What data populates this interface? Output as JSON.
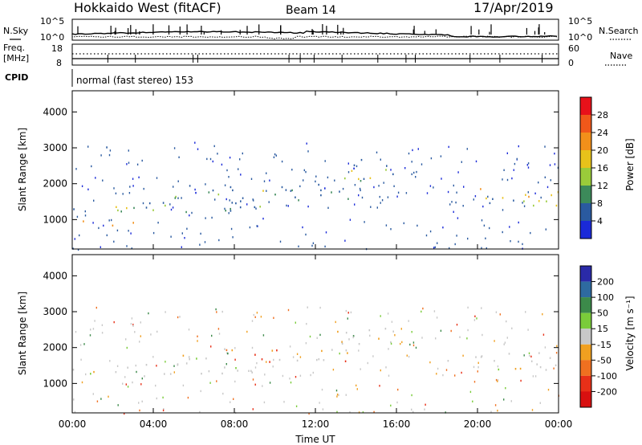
{
  "header": {
    "title": "Hokkaido West (fitACF)",
    "beam": "Beam 14",
    "date": "17/Apr/2019"
  },
  "noise_panel": {
    "left_label": "N.Sky",
    "right_label": "N.Search",
    "tick_top": "10^5",
    "tick_bottom": "10^0"
  },
  "freq_panel": {
    "left_label_line1": "Freq.",
    "left_label_line2": "[MHz]",
    "right_label": "Nave",
    "left_tick_top": "18",
    "left_tick_bottom": "8",
    "right_tick_top": "60",
    "right_tick_bottom": "0"
  },
  "cpid": {
    "label": "CPID",
    "value": "normal (fast stereo) 153"
  },
  "power_panel": {
    "ylabel": "Slant Range [km]",
    "colorbar_label": "Power [dB]",
    "colorbar_ticks": [
      "28",
      "24",
      "20",
      "16",
      "12",
      "8",
      "4"
    ],
    "colorbar_colors": [
      "#e8111a",
      "#f0581a",
      "#f2901a",
      "#e8c21a",
      "#9acb3a",
      "#3c8a5a",
      "#2a5aa0",
      "#1a2ad8"
    ]
  },
  "velocity_panel": {
    "ylabel": "Slant Range [km]",
    "colorbar_label": "Velocity [m s⁻¹]",
    "colorbar_ticks": [
      "200",
      "100",
      "50",
      "15",
      "-15",
      "-50",
      "-100",
      "-200"
    ],
    "colorbar_colors": [
      "#2a2aa8",
      "#2e6aa0",
      "#3c8a4a",
      "#7acc3a",
      "#c8c8c8",
      "#f0a020",
      "#f07020",
      "#e83018",
      "#d81010"
    ]
  },
  "xaxis": {
    "label": "Time UT",
    "ticks": [
      "00:00",
      "04:00",
      "08:00",
      "12:00",
      "16:00",
      "20:00",
      "00:00"
    ]
  },
  "chart_data": [
    {
      "type": "heatmap",
      "title": "Hokkaido West (fitACF)",
      "xlabel": "Time UT",
      "ylabel": "Slant Range [km]",
      "xlim": [
        0,
        24
      ],
      "ylim": [
        180,
        4590
      ],
      "yticks": [
        1000,
        2000,
        3000,
        4000
      ],
      "colorbar": {
        "label": "Power [dB]",
        "ticks": [
          28,
          24,
          20,
          16,
          12,
          8,
          4
        ]
      },
      "scatter_bands": [
        {
          "t0": 0.0,
          "t1": 3.0,
          "r0": 800,
          "r1": 1000,
          "level": "high"
        },
        {
          "t0": 0.0,
          "t1": 9.5,
          "r0": 1200,
          "r1": 1600,
          "level": "mid"
        },
        {
          "t0": 5.0,
          "t1": 14.0,
          "r0": 1500,
          "r1": 2000,
          "level": "mid"
        },
        {
          "t0": 13.0,
          "t1": 16.5,
          "r0": 2100,
          "r1": 2700,
          "level": "mid"
        },
        {
          "t0": 18.5,
          "t1": 24.0,
          "r0": 1400,
          "r1": 1900,
          "level": "high"
        },
        {
          "t0": 0.0,
          "t1": 2.5,
          "r0": 2950,
          "r1": 3050,
          "level": "low"
        }
      ]
    },
    {
      "type": "heatmap",
      "title": "Hokkaido West (fitACF)",
      "xlabel": "Time UT",
      "ylabel": "Slant Range [km]",
      "xlim": [
        0,
        24
      ],
      "ylim": [
        180,
        4590
      ],
      "yticks": [
        1000,
        2000,
        3000,
        4000
      ],
      "colorbar": {
        "label": "Velocity [m s⁻¹]",
        "ticks": [
          200,
          100,
          50,
          15,
          -15,
          -50,
          -100,
          -200
        ]
      },
      "scatter_bands": [
        {
          "t0": 0.0,
          "t1": 9.5,
          "r0": 1200,
          "r1": 1600,
          "level": "ground"
        },
        {
          "t0": 5.0,
          "t1": 14.0,
          "r0": 1500,
          "r1": 2000,
          "level": "mixed"
        },
        {
          "t0": 13.0,
          "t1": 16.5,
          "r0": 2100,
          "r1": 2700,
          "level": "ground"
        },
        {
          "t0": 18.5,
          "t1": 24.0,
          "r0": 1400,
          "r1": 1900,
          "level": "ground"
        }
      ]
    }
  ]
}
